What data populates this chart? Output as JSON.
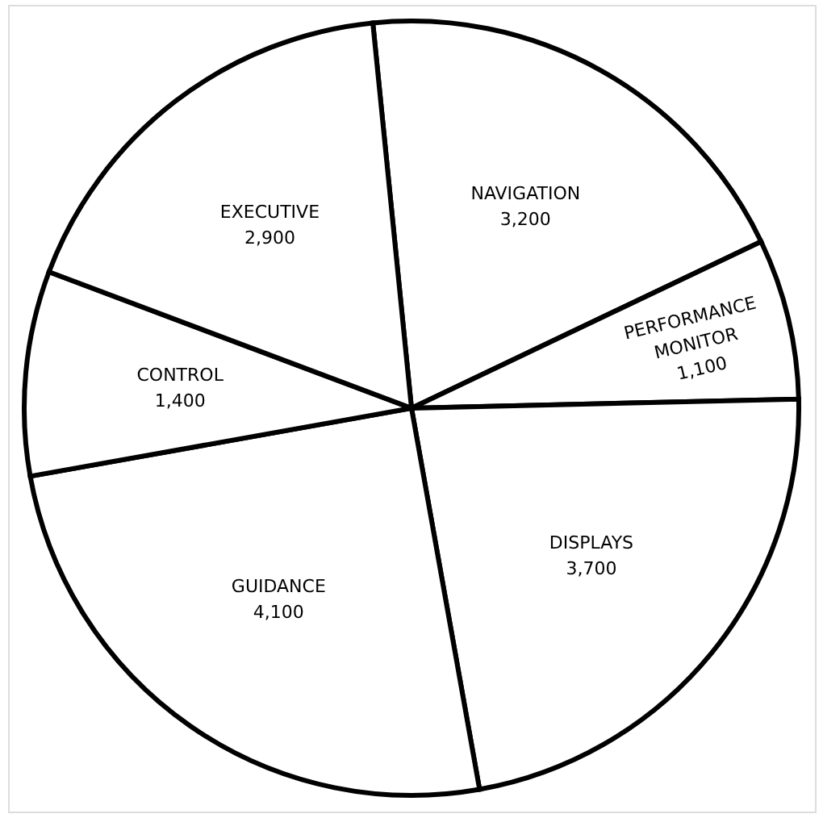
{
  "chart_data": {
    "type": "pie",
    "categories": [
      "NAVIGATION",
      "PERFORMANCE MONITOR",
      "DISPLAYS",
      "GUIDANCE",
      "CONTROL",
      "EXECUTIVE"
    ],
    "values": [
      3200,
      1100,
      3700,
      4100,
      1400,
      2900
    ],
    "colors": [
      "#ffffff",
      "#ffffff",
      "#ffffff",
      "#ffffff",
      "#ffffff",
      "#ffffff"
    ],
    "value_labels": [
      "3,200",
      "1,100",
      "3,700",
      "4,100",
      "1,400",
      "2,900"
    ],
    "legend": false
  }
}
